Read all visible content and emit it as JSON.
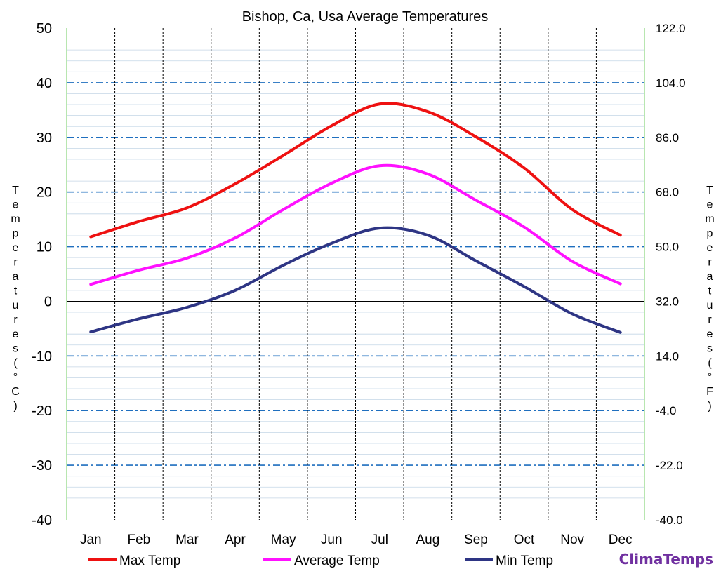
{
  "chart_data": {
    "type": "line",
    "title": "Bishop, Ca, Usa Average Temperatures",
    "ylabel": "Temperatures (°C)",
    "y2label": "Temperatures (°F)",
    "categories": [
      "Jan",
      "Feb",
      "Mar",
      "Apr",
      "May",
      "Jun",
      "Jul",
      "Aug",
      "Sep",
      "Oct",
      "Nov",
      "Dec"
    ],
    "ylim": [
      -40,
      50
    ],
    "y2lim": [
      -40.0,
      122.0
    ],
    "yticks": [
      "50",
      "40",
      "30",
      "20",
      "10",
      "0",
      "-10",
      "-20",
      "-30",
      "-40"
    ],
    "y2ticks": [
      "122.0",
      "104.0",
      "86.0",
      "68.0",
      "50.0",
      "32.0",
      "14.0",
      "-4.0",
      "-22.0",
      "-40.0"
    ],
    "grid": true,
    "legend_position": "bottom",
    "series": [
      {
        "name": "Max Temp",
        "color": "#ee1111",
        "values": [
          11.8,
          14.6,
          17.1,
          21.5,
          26.7,
          32.1,
          36.1,
          34.7,
          30.1,
          24.4,
          16.8,
          12.1
        ]
      },
      {
        "name": "Average Temp",
        "color": "#ff11ff",
        "values": [
          3.1,
          5.7,
          7.9,
          11.6,
          16.8,
          21.6,
          24.8,
          23.3,
          18.5,
          13.6,
          7.3,
          3.2
        ]
      },
      {
        "name": "Min Temp",
        "color": "#2e3584",
        "values": [
          -5.6,
          -3.2,
          -1.1,
          2.0,
          6.6,
          10.6,
          13.4,
          12.1,
          7.4,
          2.7,
          -2.3,
          -5.7
        ]
      }
    ]
  },
  "brand": "ClimaTemps"
}
